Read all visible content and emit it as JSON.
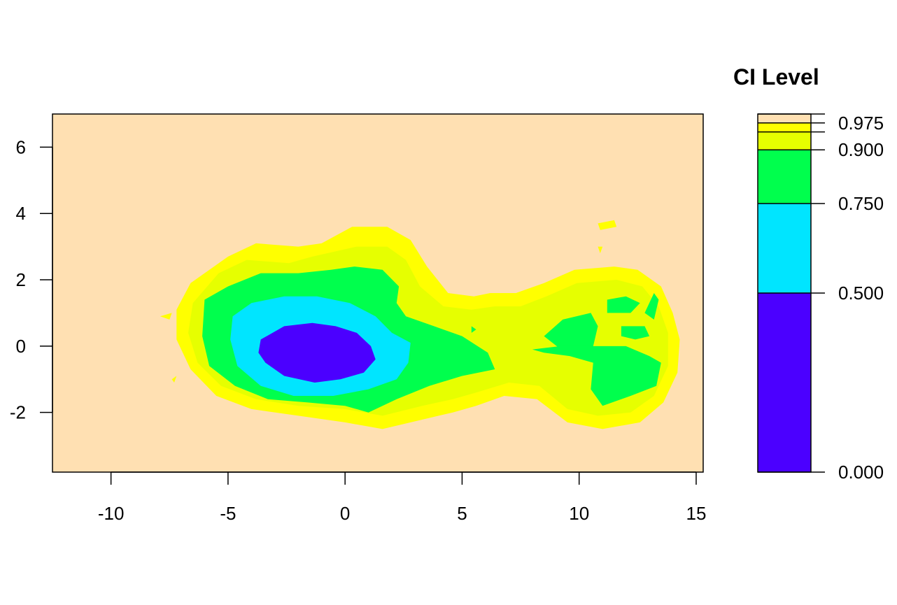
{
  "chart_data": {
    "type": "contour",
    "title": "",
    "xlabel": "",
    "ylabel": "",
    "xlim": [
      -12.5,
      15.3
    ],
    "ylim": [
      -3.8,
      7.0
    ],
    "x_ticks": [
      -10,
      -5,
      0,
      5,
      10,
      15
    ],
    "y_ticks": [
      -2,
      0,
      2,
      4,
      6
    ],
    "grid": false,
    "background_color": "#FFE0B2",
    "legend": {
      "title": "CI Level",
      "placement": "right",
      "labeled_levels": [
        0.0,
        0.5,
        0.75,
        0.9,
        0.975
      ],
      "band_boundaries": [
        0.0,
        0.5,
        0.75,
        0.9,
        0.95,
        0.975,
        1.0
      ],
      "band_colors": [
        "#4B00FF",
        "#00E5FF",
        "#00FF4D",
        "#E6FF00",
        "#FFFF00",
        "#FFE0B2"
      ],
      "tick_labels": [
        "0.000",
        "0.500",
        "0.750",
        "0.900",
        "0.975"
      ]
    },
    "regions": [
      {
        "level": 0.975,
        "color": "#FFFF00",
        "polygons": [
          [
            [
              -7.2,
              1.1
            ],
            [
              -6.6,
              1.9
            ],
            [
              -5.0,
              2.7
            ],
            [
              -3.8,
              3.1
            ],
            [
              -2.0,
              3.0
            ],
            [
              -1.0,
              3.1
            ],
            [
              0.3,
              3.6
            ],
            [
              1.8,
              3.6
            ],
            [
              2.8,
              3.2
            ],
            [
              3.5,
              2.4
            ],
            [
              4.4,
              1.6
            ],
            [
              5.5,
              1.5
            ],
            [
              6.2,
              1.6
            ],
            [
              7.3,
              1.6
            ],
            [
              8.5,
              1.9
            ],
            [
              9.8,
              2.3
            ],
            [
              11.5,
              2.4
            ],
            [
              12.5,
              2.3
            ],
            [
              13.5,
              1.8
            ],
            [
              14.0,
              1.0
            ],
            [
              14.3,
              0.2
            ],
            [
              14.2,
              -0.8
            ],
            [
              13.6,
              -1.7
            ],
            [
              12.6,
              -2.3
            ],
            [
              11.0,
              -2.5
            ],
            [
              9.5,
              -2.3
            ],
            [
              8.2,
              -1.6
            ],
            [
              6.8,
              -1.5
            ],
            [
              5.6,
              -1.8
            ],
            [
              4.6,
              -2.0
            ],
            [
              3.4,
              -2.2
            ],
            [
              1.6,
              -2.5
            ],
            [
              0.0,
              -2.3
            ],
            [
              -2.0,
              -2.1
            ],
            [
              -4.0,
              -1.9
            ],
            [
              -5.5,
              -1.5
            ],
            [
              -6.6,
              -0.7
            ],
            [
              -7.2,
              0.2
            ]
          ],
          [
            [
              -7.9,
              0.9
            ],
            [
              -7.4,
              1.0
            ],
            [
              -7.5,
              0.8
            ]
          ],
          [
            [
              -7.4,
              -1.0
            ],
            [
              -7.2,
              -0.9
            ],
            [
              -7.3,
              -1.1
            ]
          ],
          [
            [
              10.8,
              3.7
            ],
            [
              11.5,
              3.8
            ],
            [
              11.6,
              3.6
            ],
            [
              10.9,
              3.5
            ]
          ],
          [
            [
              10.8,
              3.0
            ],
            [
              11.0,
              3.0
            ],
            [
              10.9,
              2.8
            ]
          ]
        ]
      },
      {
        "level": 0.95,
        "color": "#E6FF00",
        "polygons": [
          [
            [
              -6.5,
              1.3
            ],
            [
              -5.4,
              2.2
            ],
            [
              -4.2,
              2.6
            ],
            [
              -2.4,
              2.5
            ],
            [
              -1.4,
              2.7
            ],
            [
              0.5,
              3.0
            ],
            [
              1.8,
              3.0
            ],
            [
              2.6,
              2.6
            ],
            [
              3.2,
              1.8
            ],
            [
              4.2,
              1.2
            ],
            [
              5.4,
              1.1
            ],
            [
              6.4,
              1.2
            ],
            [
              7.5,
              1.2
            ],
            [
              8.6,
              1.5
            ],
            [
              9.9,
              1.9
            ],
            [
              11.6,
              2.0
            ],
            [
              12.7,
              1.8
            ],
            [
              13.4,
              1.2
            ],
            [
              13.8,
              0.4
            ],
            [
              13.8,
              -0.6
            ],
            [
              13.2,
              -1.5
            ],
            [
              12.2,
              -2.0
            ],
            [
              10.8,
              -2.1
            ],
            [
              9.5,
              -1.9
            ],
            [
              8.3,
              -1.2
            ],
            [
              7.0,
              -1.1
            ],
            [
              5.6,
              -1.4
            ],
            [
              4.6,
              -1.6
            ],
            [
              3.3,
              -1.8
            ],
            [
              1.6,
              -2.1
            ],
            [
              0.0,
              -1.9
            ],
            [
              -2.0,
              -1.8
            ],
            [
              -3.8,
              -1.6
            ],
            [
              -5.3,
              -1.2
            ],
            [
              -6.3,
              -0.5
            ],
            [
              -6.7,
              0.4
            ]
          ],
          [
            [
              6.8,
              0.6
            ],
            [
              7.6,
              0.8
            ],
            [
              8.2,
              0.6
            ],
            [
              8.0,
              0.2
            ],
            [
              7.2,
              0.1
            ]
          ]
        ]
      },
      {
        "level": 0.9,
        "color": "#00FF4D",
        "polygons": [
          [
            [
              -6.0,
              1.4
            ],
            [
              -5.0,
              1.8
            ],
            [
              -3.6,
              2.2
            ],
            [
              -2.0,
              2.2
            ],
            [
              -0.6,
              2.3
            ],
            [
              0.4,
              2.4
            ],
            [
              1.6,
              2.3
            ],
            [
              2.3,
              1.8
            ],
            [
              2.2,
              1.3
            ],
            [
              2.6,
              0.9
            ],
            [
              3.8,
              0.6
            ],
            [
              5.0,
              0.3
            ],
            [
              6.1,
              -0.2
            ],
            [
              6.4,
              -0.7
            ],
            [
              5.0,
              -0.9
            ],
            [
              3.6,
              -1.2
            ],
            [
              2.2,
              -1.6
            ],
            [
              1.0,
              -2.0
            ],
            [
              0.0,
              -1.8
            ],
            [
              -1.6,
              -1.7
            ],
            [
              -3.3,
              -1.6
            ],
            [
              -4.7,
              -1.2
            ],
            [
              -5.8,
              -0.6
            ],
            [
              -6.1,
              0.3
            ]
          ],
          [
            [
              9.3,
              0.8
            ],
            [
              10.5,
              1.0
            ],
            [
              10.8,
              0.6
            ],
            [
              10.6,
              0.0
            ],
            [
              9.4,
              -0.2
            ],
            [
              8.5,
              0.3
            ]
          ],
          [
            [
              11.2,
              1.4
            ],
            [
              12.0,
              1.5
            ],
            [
              12.6,
              1.3
            ],
            [
              12.2,
              1.0
            ],
            [
              11.2,
              1.0
            ]
          ],
          [
            [
              8.0,
              -0.1
            ],
            [
              9.2,
              0.0
            ],
            [
              10.8,
              0.0
            ],
            [
              12.0,
              0.0
            ],
            [
              13.0,
              -0.3
            ],
            [
              13.5,
              -0.5
            ],
            [
              13.3,
              -1.2
            ],
            [
              12.2,
              -1.5
            ],
            [
              11.0,
              -1.8
            ],
            [
              10.5,
              -1.3
            ],
            [
              10.6,
              -0.5
            ],
            [
              9.6,
              -0.3
            ],
            [
              8.5,
              -0.2
            ]
          ],
          [
            [
              12.8,
              1.0
            ],
            [
              13.2,
              1.6
            ],
            [
              13.4,
              1.4
            ],
            [
              13.2,
              0.8
            ]
          ],
          [
            [
              11.8,
              0.6
            ],
            [
              12.8,
              0.6
            ],
            [
              13.0,
              0.3
            ],
            [
              12.4,
              0.2
            ],
            [
              11.8,
              0.3
            ]
          ],
          [
            [
              5.4,
              0.6
            ],
            [
              5.6,
              0.5
            ],
            [
              5.4,
              0.4
            ]
          ]
        ]
      },
      {
        "level": 0.75,
        "color": "#00E5FF",
        "polygons": [
          [
            [
              -4.8,
              0.9
            ],
            [
              -4.0,
              1.3
            ],
            [
              -2.6,
              1.5
            ],
            [
              -1.2,
              1.5
            ],
            [
              0.2,
              1.3
            ],
            [
              1.3,
              0.9
            ],
            [
              2.0,
              0.4
            ],
            [
              2.8,
              0.1
            ],
            [
              2.7,
              -0.5
            ],
            [
              2.2,
              -1.0
            ],
            [
              1.0,
              -1.3
            ],
            [
              -0.5,
              -1.5
            ],
            [
              -2.2,
              -1.5
            ],
            [
              -3.6,
              -1.2
            ],
            [
              -4.6,
              -0.6
            ],
            [
              -4.9,
              0.2
            ]
          ]
        ]
      },
      {
        "level": 0.5,
        "color": "#4B00FF",
        "polygons": [
          [
            [
              -3.6,
              0.2
            ],
            [
              -2.6,
              0.6
            ],
            [
              -1.4,
              0.7
            ],
            [
              -0.4,
              0.6
            ],
            [
              0.5,
              0.4
            ],
            [
              1.1,
              0.0
            ],
            [
              1.3,
              -0.4
            ],
            [
              0.8,
              -0.8
            ],
            [
              -0.2,
              -1.0
            ],
            [
              -1.3,
              -1.1
            ],
            [
              -2.6,
              -0.9
            ],
            [
              -3.4,
              -0.5
            ],
            [
              -3.7,
              -0.2
            ]
          ]
        ]
      }
    ]
  }
}
